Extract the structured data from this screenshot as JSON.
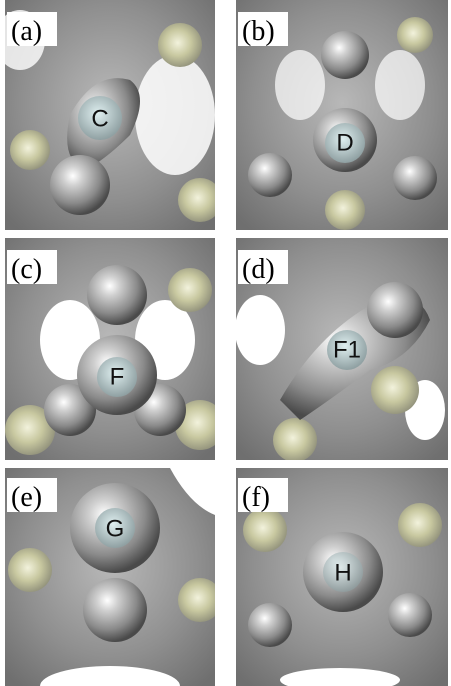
{
  "panels": [
    {
      "label": "(a)",
      "site": "C"
    },
    {
      "label": "(b)",
      "site": "D"
    },
    {
      "label": "(c)",
      "site": "F"
    },
    {
      "label": "(d)",
      "site": "F1"
    },
    {
      "label": "(e)",
      "site": "G"
    },
    {
      "label": "(f)",
      "site": "H"
    }
  ]
}
